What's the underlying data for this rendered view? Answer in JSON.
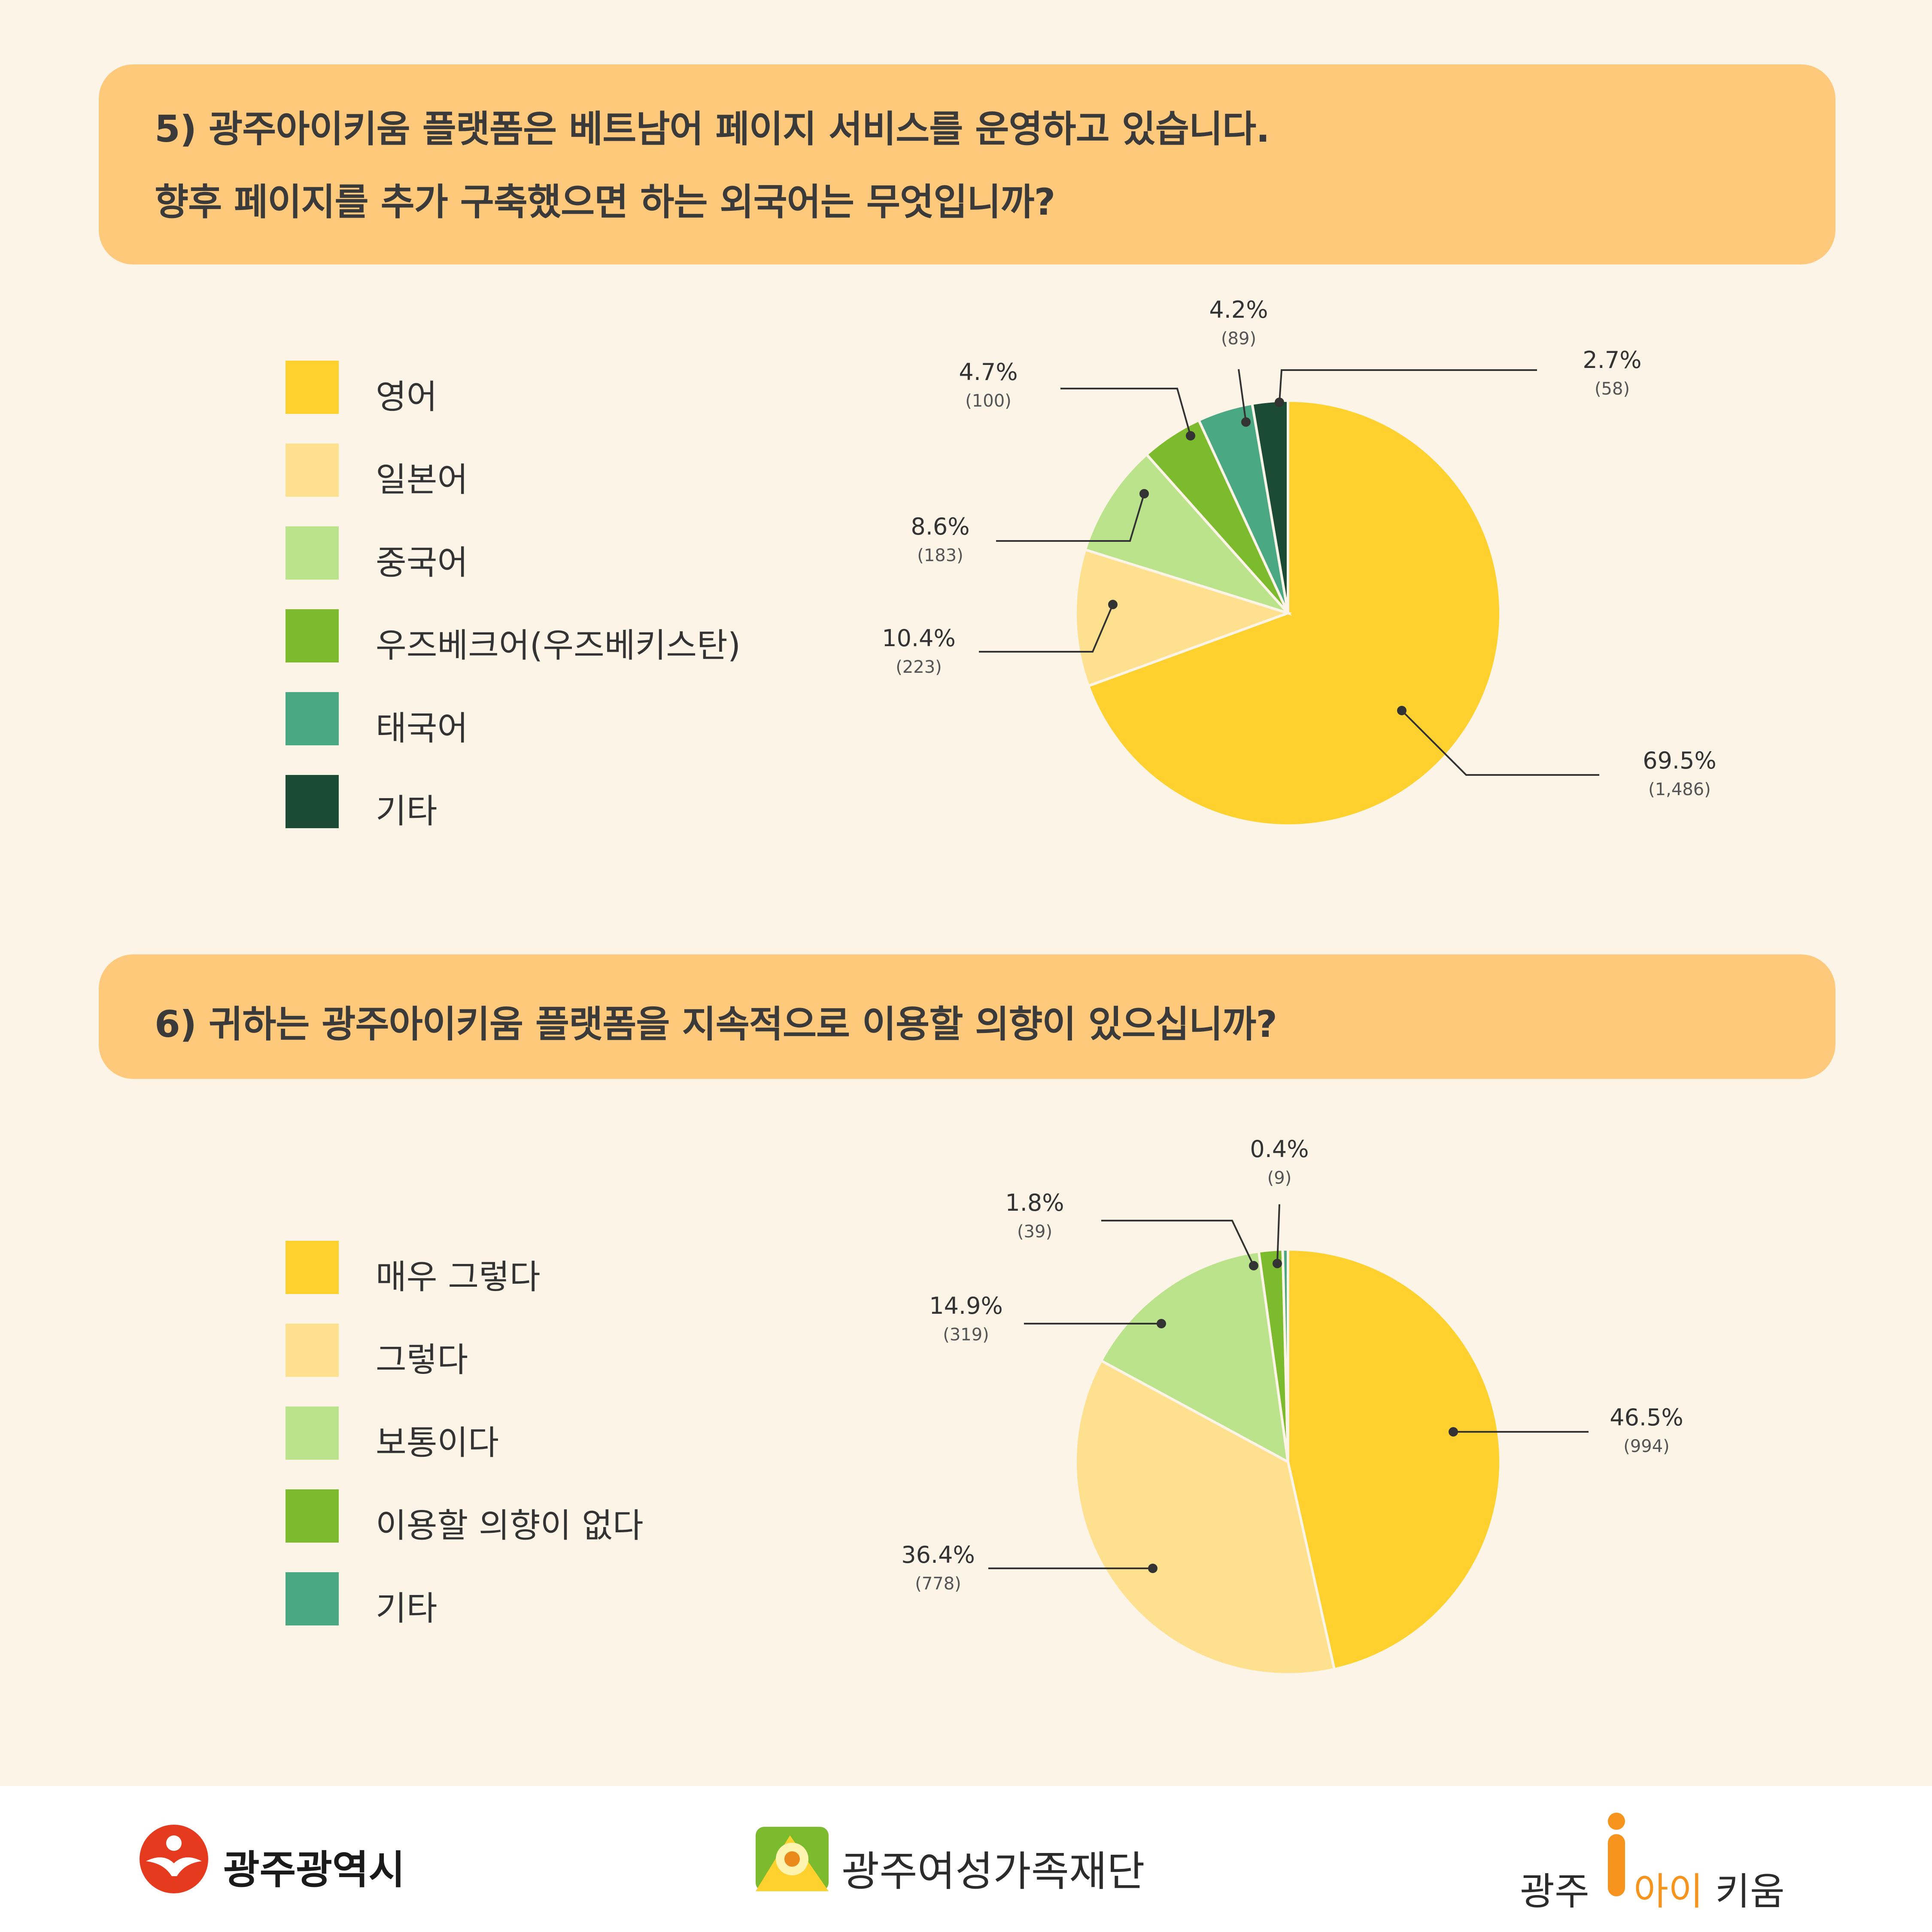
{
  "q5": {
    "title_line1": "5) 광주아이키움 플랫폼은 베트남어 페이지 서비스를 운영하고 있습니다.",
    "title_line2": "향후 페이지를 추가 구축했으면 하는 외국어는 무엇입니까?"
  },
  "q6": {
    "title_line1": "6) 귀하는 광주아이키움 플랫폼을 지속적으로 이용할 의향이 있으십니까?"
  },
  "chart_data": [
    {
      "type": "pie",
      "title": "5) 광주아이키움 플랫폼은 베트남어 페이지 서비스를 운영하고 있습니다. 향후 페이지를 추가 구축했으면 하는 외국어는 무엇입니까?",
      "categories": [
        "영어",
        "일본어",
        "중국어",
        "우즈베크어(우즈베키스탄)",
        "태국어",
        "기타"
      ],
      "values": [
        69.5,
        10.4,
        8.6,
        4.7,
        4.2,
        2.7
      ],
      "counts": [
        1486,
        223,
        183,
        100,
        89,
        58
      ],
      "pct_labels": [
        "69.5%",
        "10.4%",
        "8.6%",
        "4.7%",
        "4.2%",
        "2.7%"
      ],
      "count_labels": [
        "(1,486)",
        "(223)",
        "(183)",
        "(100)",
        "(89)",
        "(58)"
      ],
      "colors": [
        "#ffd12f",
        "#ffe08f",
        "#bbe38b",
        "#7dbb2e",
        "#4aa883",
        "#1b4a35"
      ],
      "legend": "left"
    },
    {
      "type": "pie",
      "title": "6) 귀하는 광주아이키움 플랫폼을 지속적으로 이용할 의향이 있으십니까?",
      "categories": [
        "매우 그렇다",
        "그렇다",
        "보통이다",
        "이용할 의향이 없다",
        "기타"
      ],
      "values": [
        46.5,
        36.4,
        14.9,
        1.8,
        0.4
      ],
      "counts": [
        994,
        778,
        319,
        39,
        9
      ],
      "pct_labels": [
        "46.5%",
        "36.4%",
        "14.9%",
        "1.8%",
        "0.4%"
      ],
      "count_labels": [
        "(994)",
        "(778)",
        "(319)",
        "(39)",
        "(9)"
      ],
      "colors": [
        "#ffd12f",
        "#ffe08f",
        "#bbe38b",
        "#7dbb2e",
        "#4aa883"
      ],
      "legend": "left"
    }
  ],
  "footer": {
    "logo1_text": "광주광역시",
    "logo2_text": "광주여성가족재단",
    "logo3_prefix": "광주",
    "logo3_highlight": "아이",
    "logo3_suffix": "키움"
  }
}
